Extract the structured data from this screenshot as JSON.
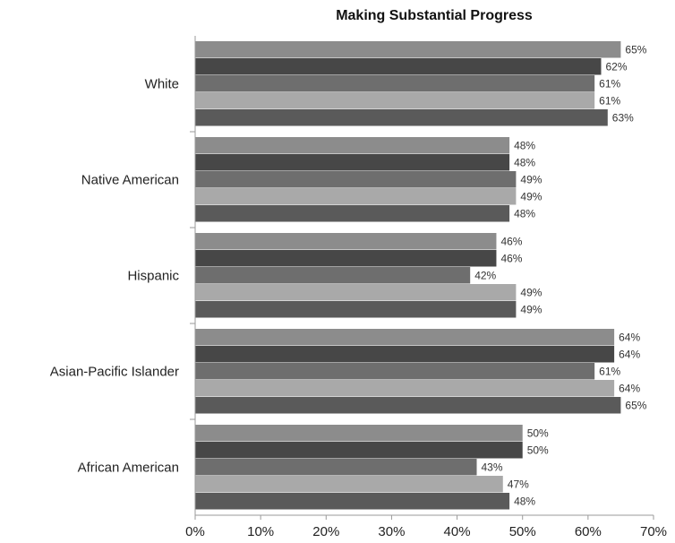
{
  "chart_data": {
    "type": "bar",
    "orientation": "horizontal",
    "title": "Making Substantial Progress",
    "xlabel": "",
    "ylabel": "",
    "xlim": [
      0,
      70
    ],
    "x_ticks": [
      "0%",
      "10%",
      "20%",
      "30%",
      "40%",
      "50%",
      "60%",
      "70%"
    ],
    "grid": false,
    "legend": "none",
    "value_format": "{v}%",
    "categories": [
      "White",
      "Native American",
      "Hispanic",
      "Asian-Pacific Islander",
      "African American"
    ],
    "series": [
      {
        "color": "#8c8c8c",
        "values": [
          65,
          48,
          46,
          64,
          50
        ]
      },
      {
        "color": "#474747",
        "values": [
          62,
          48,
          46,
          64,
          50
        ]
      },
      {
        "color": "#6e6e6e",
        "values": [
          61,
          49,
          42,
          61,
          43
        ]
      },
      {
        "color": "#a9a9a9",
        "values": [
          61,
          49,
          49,
          64,
          47
        ]
      },
      {
        "color": "#5a5a5a",
        "values": [
          63,
          48,
          49,
          65,
          48
        ]
      }
    ]
  }
}
